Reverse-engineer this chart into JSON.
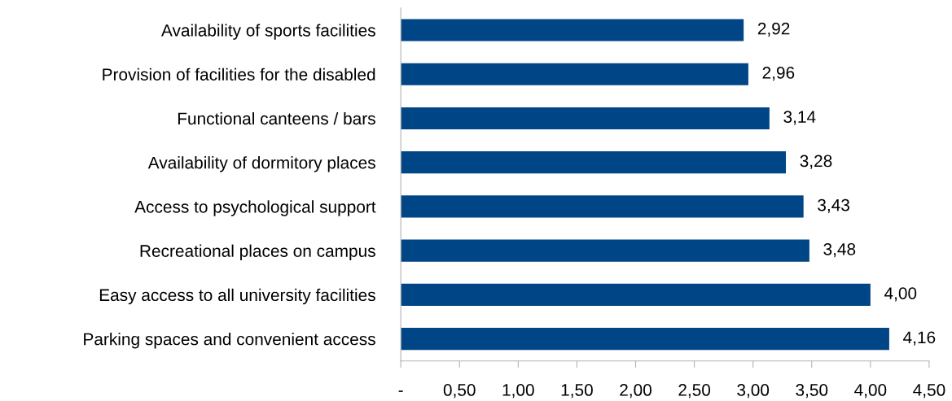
{
  "chart_data": {
    "type": "bar",
    "orientation": "horizontal",
    "categories": [
      "Availability of sports facilities",
      "Provision of facilities for the disabled",
      "Functional canteens / bars",
      "Availability of dormitory places",
      "Access to psychological support",
      "Recreational places on campus",
      "Easy access to all university facilities",
      "Parking spaces and convenient access"
    ],
    "series": [
      {
        "color": "#004586",
        "values": [
          2.92,
          2.96,
          3.14,
          3.28,
          3.43,
          3.48,
          4.0,
          4.16
        ],
        "value_labels": [
          "2,92",
          "2,96",
          "3,14",
          "3,28",
          "3,43",
          "3,48",
          "4,00",
          "4,16"
        ]
      }
    ],
    "xlim": [
      0,
      4.5
    ],
    "xticks": [
      {
        "value": 0,
        "label": "-"
      },
      {
        "value": 0.5,
        "label": "0,50"
      },
      {
        "value": 1,
        "label": "1,00"
      },
      {
        "value": 1.5,
        "label": "1,50"
      },
      {
        "value": 2,
        "label": "2,00"
      },
      {
        "value": 2.5,
        "label": "2,50"
      },
      {
        "value": 3,
        "label": "3,00"
      },
      {
        "value": 3.5,
        "label": "3,50"
      },
      {
        "value": 4,
        "label": "4,00"
      },
      {
        "value": 4.5,
        "label": "4,50"
      }
    ],
    "grid": false
  }
}
